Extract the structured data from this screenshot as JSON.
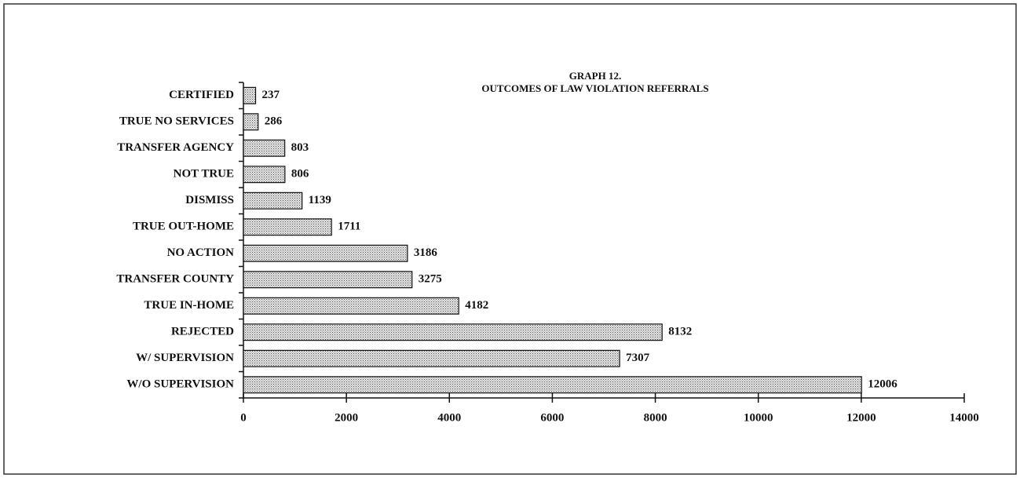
{
  "chart_data": {
    "type": "barh",
    "title": "GRAPH 12.",
    "subtitle": "OUTCOMES OF LAW VIOLATION REFERRALS",
    "categories": [
      "CERTIFIED",
      "TRUE NO SERVICES",
      "TRANSFER AGENCY",
      "NOT TRUE",
      "DISMISS",
      "TRUE OUT-HOME",
      "NO ACTION",
      "TRANSFER COUNTY",
      "TRUE IN-HOME",
      "REJECTED",
      "W/ SUPERVISION",
      "W/O SUPERVISION"
    ],
    "values": [
      237,
      286,
      803,
      806,
      1139,
      1711,
      3186,
      3275,
      4182,
      8132,
      7307,
      12006
    ],
    "color": "#c8c8c8",
    "xlim": [
      0,
      14000
    ],
    "xticks": [
      0,
      2000,
      4000,
      6000,
      8000,
      10000,
      12000,
      14000
    ],
    "grid": false
  }
}
